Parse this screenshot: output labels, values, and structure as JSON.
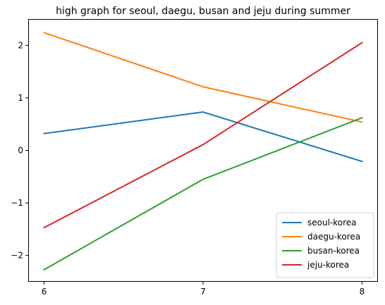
{
  "chart_data": {
    "type": "line",
    "title": "high graph for seoul, daegu, busan and jeju during summer",
    "xlabel": "",
    "ylabel": "",
    "x": [
      6,
      7,
      8
    ],
    "x_ticks": [
      "6",
      "7",
      "8"
    ],
    "xlim": [
      5.9,
      8.1
    ],
    "ylim": [
      -2.5,
      2.5
    ],
    "y_ticks": [
      -2,
      -1,
      0,
      1,
      2
    ],
    "y_tick_labels": [
      "−2",
      "−1",
      "0",
      "1",
      "2"
    ],
    "grid": false,
    "legend_position": "lower-right",
    "series": [
      {
        "name": "seoul-korea",
        "color": "#1f77b4",
        "values": [
          0.32,
          0.73,
          -0.21
        ]
      },
      {
        "name": "daegu-korea",
        "color": "#ff7f0e",
        "values": [
          2.24,
          1.21,
          0.54
        ]
      },
      {
        "name": "busan-korea",
        "color": "#2ca02c",
        "values": [
          -2.27,
          -0.55,
          0.62
        ]
      },
      {
        "name": "jeju-korea",
        "color": "#d62728",
        "values": [
          -1.47,
          0.11,
          2.05
        ]
      }
    ]
  }
}
